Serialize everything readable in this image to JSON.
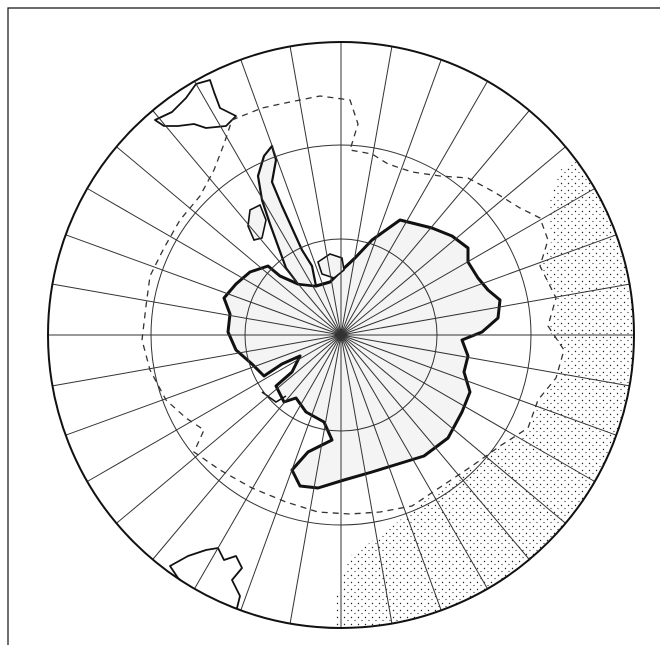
{
  "map": {
    "projection": "polar-azimuthal",
    "pole": "south",
    "meridian_count": 36,
    "parallel_count": 4,
    "colors": {
      "frame": "#111111",
      "grid": "#333333",
      "coast": "#111111",
      "ice_fill": "#f4f4f4",
      "stipple": "#222222",
      "background": "#ffffff"
    },
    "features": [
      "graticule-meridians",
      "graticule-parallels",
      "antarctica-coastline",
      "antarctic-peninsula",
      "south-america-tip",
      "africa-tip",
      "dashed-ice-boundary",
      "stippled-ice-region"
    ]
  }
}
